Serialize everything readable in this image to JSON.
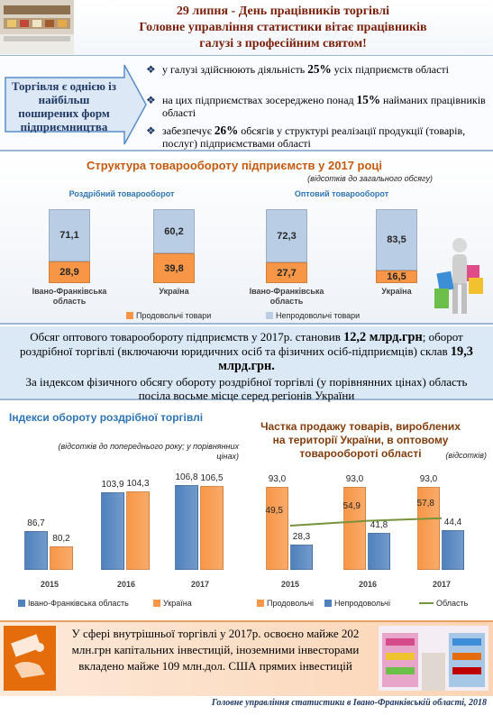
{
  "header": {
    "lines": [
      "29 липня - День  працівників торгівлі",
      "Головне управління статистики вітає працівників",
      "галузі з професійним святом!"
    ]
  },
  "intro": {
    "callout": "Торгівля  є однією із найбільш поширених форм підприємництва",
    "bullets": [
      [
        {
          "text": "у галузі здійснюють діяльність "
        },
        {
          "text": "25%",
          "strong": true
        },
        {
          "text": " усіх підприємств області"
        }
      ],
      [
        {
          "text": "на цих підприємствах зосереджено  понад "
        },
        {
          "text": "15%",
          "strong": true
        },
        {
          "text": " найманих працівників області"
        }
      ],
      [
        {
          "text": "забезпечує "
        },
        {
          "text": "26%",
          "strong": true
        },
        {
          "text": " обсягів у структурі реалізації продукції (товарів, послуг) підприємствами області"
        }
      ]
    ]
  },
  "chart_data": [
    {
      "type": "stacked_bar",
      "title": "Структура товарообороту підприємств у 2017 році",
      "subtitle": "(відсотків до загального обсягу)",
      "groups": [
        "Роздрібний товарооборот",
        "Оптовий товарооборот"
      ],
      "categories": [
        "Івано-Франківська область",
        "Україна",
        "Івано-Франківська область",
        "Україна"
      ],
      "series": [
        {
          "name": "Продовольчі товари",
          "color": "#f79646",
          "values": [
            28.9,
            39.8,
            27.7,
            16.5
          ],
          "value_labels": [
            "28,9",
            "39,8",
            "27,7",
            "16,5"
          ]
        },
        {
          "name": "Непродовольчі товари",
          "color": "#b9cde5",
          "values": [
            71.1,
            60.2,
            72.3,
            83.5
          ],
          "value_labels": [
            "71,1",
            "60,2",
            "72,3",
            "83,5"
          ]
        }
      ],
      "ylim": [
        0,
        100
      ]
    },
    {
      "type": "bar",
      "title": "Індекси  обороту роздрібної торгівлі",
      "subtitle": "(відсотків до попереднього року; у порівнянних цінах)",
      "categories": [
        "2015",
        "2016",
        "2017"
      ],
      "series": [
        {
          "name": "Івано-Франківська область",
          "color": "#4f81bd",
          "values": [
            86.7,
            103.9,
            106.8
          ],
          "value_labels": [
            "86,7",
            "103,9",
            "106,8"
          ]
        },
        {
          "name": "Україна",
          "color": "#f79646",
          "values": [
            80.2,
            104.3,
            106.5
          ],
          "value_labels": [
            "80,2",
            "104,3",
            "106,5"
          ]
        }
      ],
      "ylim": [
        70,
        110
      ]
    },
    {
      "type": "bar_line",
      "title": "Частка продажу товарів, вироблених на території України, в оптовому товарообороті області",
      "subtitle": "(відсотків)",
      "categories": [
        "2015",
        "2016",
        "2017"
      ],
      "series": [
        {
          "name": "Продовольчі",
          "color": "#f79646",
          "values": [
            93.0,
            93.0,
            93.0
          ],
          "value_labels": [
            "93,0",
            "93,0",
            "93,0"
          ]
        },
        {
          "name": "Непродовольчі",
          "color": "#4f81bd",
          "values": [
            28.3,
            41.8,
            44.4
          ],
          "value_labels": [
            "28,3",
            "41,8",
            "44,4"
          ]
        },
        {
          "name": "Область",
          "type": "line",
          "color": "#77933c",
          "values": [
            49.5,
            54.9,
            57.8
          ],
          "value_labels": [
            "49,5",
            "54,9",
            "57,8"
          ]
        }
      ],
      "ylim": [
        0,
        100
      ]
    }
  ],
  "summary": {
    "paragraphs": [
      [
        {
          "text": "Обсяг оптового   товарообороту підприємств у 2017р. становив  "
        },
        {
          "text": "12,2 млрд.грн",
          "strong": true
        },
        {
          "text": "; оборот роздрібної торгівлі (включаючи юридичних осіб та фізичних осіб-підприємців)  склав "
        },
        {
          "text": "19,3 млрд.грн.",
          "strong": true
        }
      ],
      [
        {
          "text": "За індексом фізичного обсягу обороту роздрібної торгівлі (у порівнянних цінах) область посіла восьме місце серед регіонів України"
        }
      ]
    ]
  },
  "investment": {
    "text": "У сфері внутрішньої торгівлі у 2017р. освоєно майже 202 млн.грн капітальних інвестицій, іноземними інвесторами вкладено майже 109 млн.дол. США прямих інвестицій"
  },
  "footer": "Головне управління статистики в Івано-Франківській області, 2018"
}
